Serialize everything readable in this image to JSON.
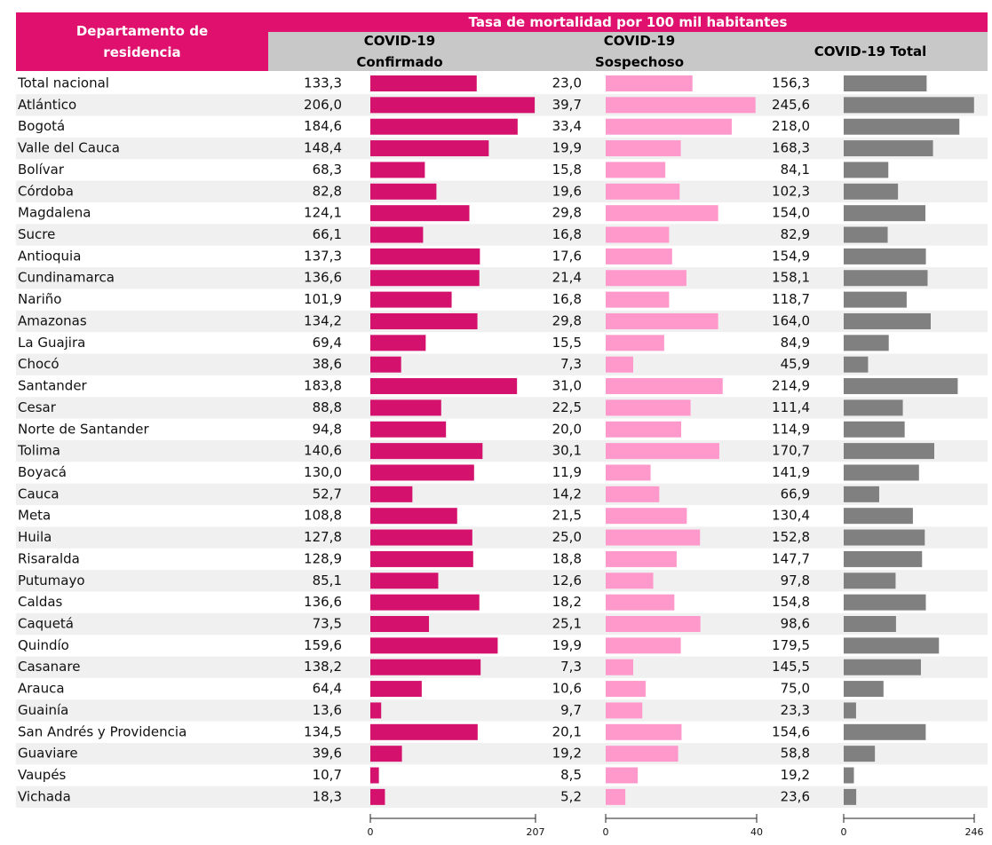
{
  "chart_data": {
    "type": "bar",
    "title": "Tasa de mortalidad por 100 mil habitantes",
    "category_header": "Departamento de residencia",
    "categories": [
      "Total nacional",
      "Atlántico",
      "Bogotá",
      "Valle del Cauca",
      "Bolívar",
      "Córdoba",
      "Magdalena",
      "Sucre",
      "Antioquia",
      "Cundinamarca",
      "Nariño",
      "Amazonas",
      "La Guajira",
      "Chocó",
      "Santander",
      "Cesar",
      "Norte de Santander",
      "Tolima",
      "Boyacá",
      "Cauca",
      "Meta",
      "Huila",
      "Risaralda",
      "Putumayo",
      "Caldas",
      "Caquetá",
      "Quindío",
      "Casanare",
      "Arauca",
      "Guainía",
      "San Andrés y Providencia",
      "Guaviare",
      "Vaupés",
      "Vichada"
    ],
    "series": [
      {
        "name": "COVID-19 Confirmado",
        "color": "#d4116c",
        "xlim": [
          0,
          207
        ],
        "xticks": [
          0,
          207
        ],
        "values": [
          133.3,
          206,
          184.6,
          148.4,
          68.3,
          82.8,
          124.1,
          66.1,
          137.3,
          136.6,
          101.9,
          134.2,
          69.4,
          38.6,
          183.8,
          88.8,
          94.8,
          140.6,
          130,
          52.7,
          108.8,
          127.8,
          128.9,
          85.1,
          136.6,
          73.5,
          159.6,
          138.2,
          64.4,
          13.6,
          134.5,
          39.6,
          10.7,
          18.3
        ],
        "value_labels": [
          "133,3",
          "206,0",
          "184,6",
          "148,4",
          "68,3",
          "82,8",
          "124,1",
          "66,1",
          "137,3",
          "136,6",
          "101,9",
          "134,2",
          "69,4",
          "38,6",
          "183,8",
          "88,8",
          "94,8",
          "140,6",
          "130,0",
          "52,7",
          "108,8",
          "127,8",
          "128,9",
          "85,1",
          "136,6",
          "73,5",
          "159,6",
          "138,2",
          "64,4",
          "13,6",
          "134,5",
          "39,6",
          "10,7",
          "18,3"
        ]
      },
      {
        "name": "COVID-19 Sospechoso",
        "color": "#ff99cc",
        "xlim": [
          0,
          40
        ],
        "xticks": [
          0,
          40
        ],
        "values": [
          23,
          39.7,
          33.4,
          19.9,
          15.8,
          19.6,
          29.8,
          16.8,
          17.6,
          21.4,
          16.8,
          29.8,
          15.5,
          7.3,
          31,
          22.5,
          20,
          30.1,
          11.9,
          14.2,
          21.5,
          25,
          18.8,
          12.6,
          18.2,
          25.1,
          19.9,
          7.3,
          10.6,
          9.7,
          20.1,
          19.2,
          8.5,
          5.2
        ],
        "value_labels": [
          "23,0",
          "39,7",
          "33,4",
          "19,9",
          "15,8",
          "19,6",
          "29,8",
          "16,8",
          "17,6",
          "21,4",
          "16,8",
          "29,8",
          "15,5",
          "7,3",
          "31,0",
          "22,5",
          "20,0",
          "30,1",
          "11,9",
          "14,2",
          "21,5",
          "25,0",
          "18,8",
          "12,6",
          "18,2",
          "25,1",
          "19,9",
          "7,3",
          "10,6",
          "9,7",
          "20,1",
          "19,2",
          "8,5",
          "5,2"
        ]
      },
      {
        "name": "COVID-19 Total",
        "color": "#808080",
        "xlim": [
          0,
          246
        ],
        "xticks": [
          0,
          246
        ],
        "values": [
          156.3,
          245.6,
          218,
          168.3,
          84.1,
          102.3,
          154,
          82.9,
          154.9,
          158.1,
          118.7,
          164,
          84.9,
          45.9,
          214.9,
          111.4,
          114.9,
          170.7,
          141.9,
          66.9,
          130.4,
          152.8,
          147.7,
          97.8,
          154.8,
          98.6,
          179.5,
          145.5,
          75,
          23.3,
          154.6,
          58.8,
          19.2,
          23.6
        ],
        "value_labels": [
          "156,3",
          "245,6",
          "218,0",
          "168,3",
          "84,1",
          "102,3",
          "154,0",
          "82,9",
          "154,9",
          "158,1",
          "118,7",
          "164,0",
          "84,9",
          "45,9",
          "214,9",
          "111,4",
          "114,9",
          "170,7",
          "141,9",
          "66,9",
          "130,4",
          "152,8",
          "147,7",
          "97,8",
          "154,8",
          "98,6",
          "179,5",
          "145,5",
          "75,0",
          "23,3",
          "154,6",
          "58,8",
          "19,2",
          "23,6"
        ]
      }
    ]
  }
}
